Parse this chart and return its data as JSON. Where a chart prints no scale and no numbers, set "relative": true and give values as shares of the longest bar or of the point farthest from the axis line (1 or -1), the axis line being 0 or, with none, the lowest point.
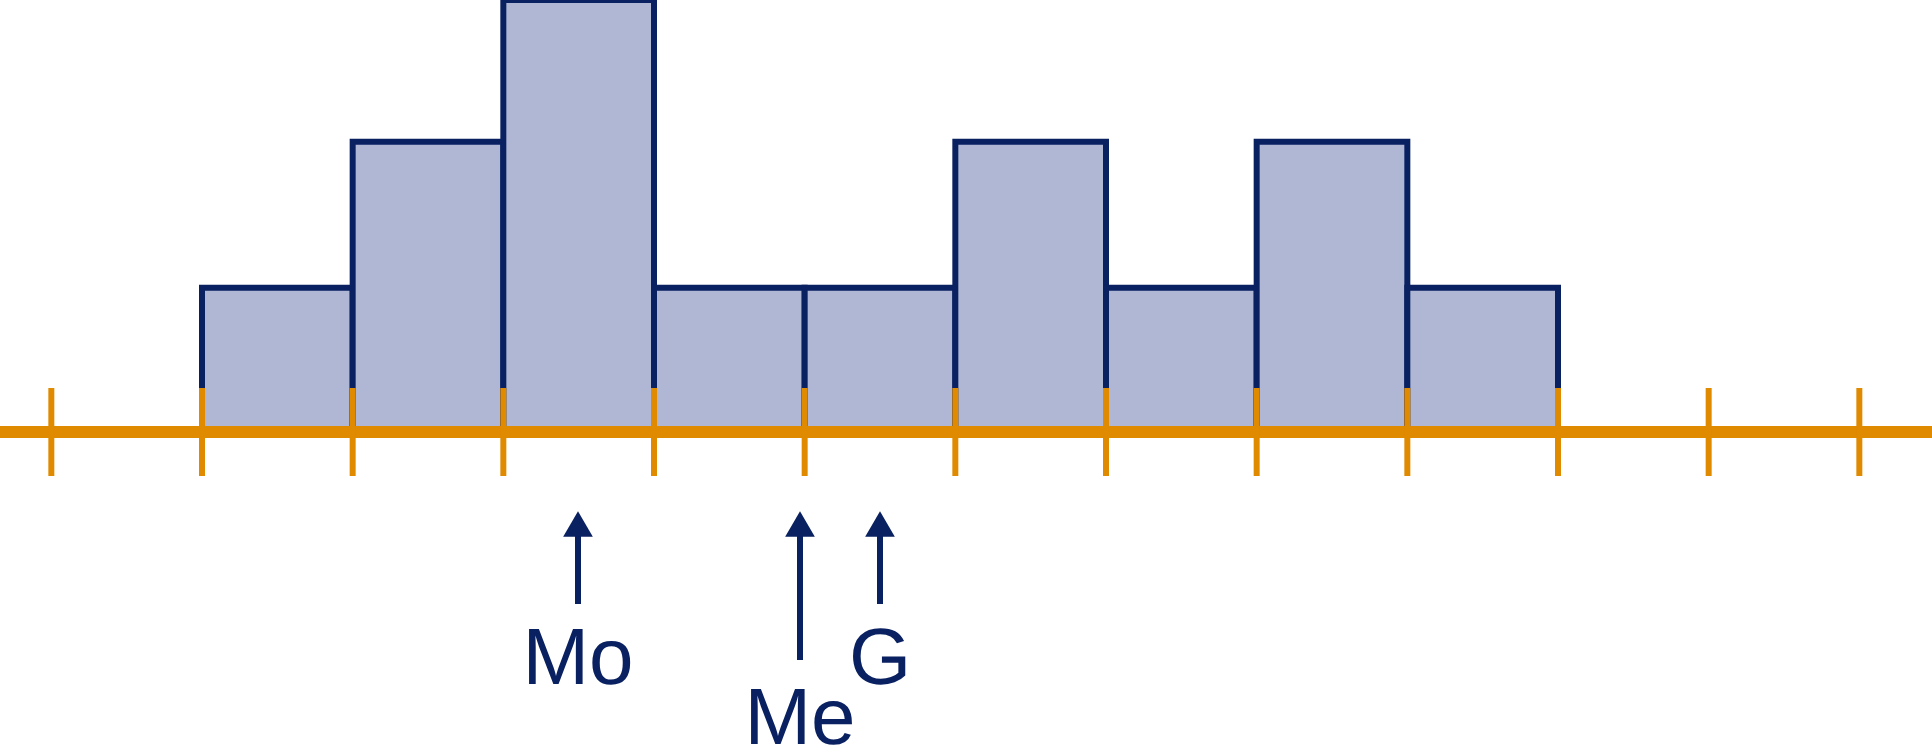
{
  "chart_data": {
    "type": "bar",
    "relative": true,
    "categories": [
      null,
      null,
      null,
      null,
      null,
      null,
      null,
      null,
      null
    ],
    "values": [
      0.33,
      0.67,
      1,
      0.33,
      0.33,
      0.67,
      0.33,
      0.67,
      0.33
    ],
    "color": "#b0b7d4",
    "annotations": [
      "Mo",
      "Me",
      "G"
    ]
  }
}
